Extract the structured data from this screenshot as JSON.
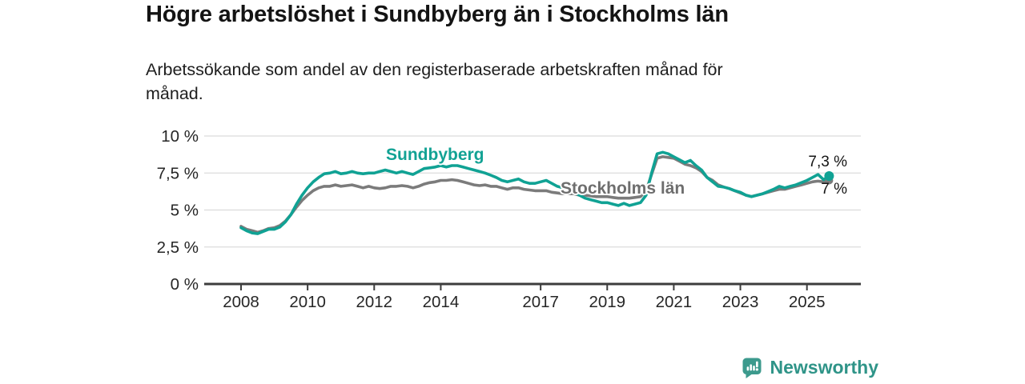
{
  "chart_data": {
    "type": "line",
    "title": "Högre arbetslöshet i Sundbyberg än i Stockholms län",
    "subtitle": "Arbetssökande som andel av den registerbaserade arbetskraften månad för\nmånad.",
    "xlabel": "",
    "ylabel": "",
    "ylim": [
      0,
      10
    ],
    "xlim": [
      2006.9,
      2026.6
    ],
    "grid": "horizontal",
    "legend_position": "inline-labels",
    "yticks": [
      {
        "value": 10,
        "label": "10 %"
      },
      {
        "value": 7.5,
        "label": "7,5 %"
      },
      {
        "value": 5,
        "label": "5 %"
      },
      {
        "value": 2.5,
        "label": "2,5 %"
      },
      {
        "value": 0,
        "label": "0 %"
      }
    ],
    "xticks": [
      {
        "value": 2008,
        "label": "2008"
      },
      {
        "value": 2010,
        "label": "2010"
      },
      {
        "value": 2012,
        "label": "2012"
      },
      {
        "value": 2014,
        "label": "2014"
      },
      {
        "value": 2017,
        "label": "2017"
      },
      {
        "value": 2019,
        "label": "2019"
      },
      {
        "value": 2021,
        "label": "2021"
      },
      {
        "value": 2023,
        "label": "2023"
      },
      {
        "value": 2025,
        "label": "2025"
      }
    ],
    "colors": {
      "sundbyberg": "#10A294",
      "stockholm": "#7B7B7B",
      "grid": "#DCDCDC",
      "axis": "#3D3D3D",
      "tick_text": "#262626"
    },
    "x_start": 2008,
    "x_step_years": 0.166667,
    "series": [
      {
        "name": "Sundbyberg",
        "color": "#10A294",
        "end_label": "7,3 %",
        "end_value": 7.3,
        "dot_radius": 6,
        "values": [
          3.8,
          3.6,
          3.45,
          3.4,
          3.55,
          3.7,
          3.7,
          3.85,
          4.2,
          4.7,
          5.4,
          6.0,
          6.5,
          6.9,
          7.2,
          7.45,
          7.5,
          7.6,
          7.45,
          7.5,
          7.6,
          7.5,
          7.45,
          7.5,
          7.5,
          7.6,
          7.7,
          7.6,
          7.5,
          7.6,
          7.5,
          7.4,
          7.6,
          7.8,
          7.85,
          7.9,
          8.0,
          7.9,
          8.0,
          8.0,
          7.9,
          7.8,
          7.7,
          7.6,
          7.5,
          7.35,
          7.2,
          7.0,
          6.9,
          7.0,
          7.1,
          6.9,
          6.8,
          6.8,
          6.9,
          7.0,
          6.8,
          6.6,
          6.5,
          6.4,
          6.2,
          6.0,
          5.8,
          5.7,
          5.6,
          5.5,
          5.5,
          5.4,
          5.3,
          5.45,
          5.3,
          5.4,
          5.5,
          6.0,
          7.5,
          8.8,
          8.9,
          8.8,
          8.6,
          8.4,
          8.2,
          8.35,
          8.0,
          7.7,
          7.2,
          6.9,
          6.6,
          6.55,
          6.45,
          6.3,
          6.2,
          6.0,
          5.9,
          6.0,
          6.1,
          6.25,
          6.4,
          6.6,
          6.5,
          6.6,
          6.7,
          6.85,
          7.0,
          7.2,
          7.4,
          7.05,
          7.3
        ]
      },
      {
        "name": "Stockholms län",
        "color": "#7B7B7B",
        "end_label": "7 %",
        "end_value": 7.0,
        "dot_radius": 5,
        "values": [
          3.9,
          3.7,
          3.6,
          3.5,
          3.6,
          3.75,
          3.8,
          3.95,
          4.25,
          4.7,
          5.2,
          5.65,
          6.0,
          6.3,
          6.5,
          6.6,
          6.6,
          6.7,
          6.6,
          6.65,
          6.7,
          6.6,
          6.5,
          6.6,
          6.5,
          6.45,
          6.5,
          6.6,
          6.6,
          6.65,
          6.6,
          6.5,
          6.6,
          6.75,
          6.85,
          6.9,
          7.0,
          7.0,
          7.05,
          7.0,
          6.9,
          6.8,
          6.7,
          6.65,
          6.7,
          6.6,
          6.6,
          6.5,
          6.4,
          6.5,
          6.5,
          6.4,
          6.35,
          6.3,
          6.3,
          6.3,
          6.2,
          6.15,
          6.1,
          6.1,
          6.1,
          6.0,
          6.0,
          5.95,
          5.9,
          5.9,
          5.9,
          5.85,
          5.8,
          5.8,
          5.8,
          5.85,
          5.9,
          6.3,
          7.4,
          8.5,
          8.6,
          8.55,
          8.5,
          8.3,
          8.1,
          8.0,
          7.85,
          7.6,
          7.2,
          7.0,
          6.7,
          6.55,
          6.45,
          6.3,
          6.15,
          6.0,
          5.9,
          6.0,
          6.1,
          6.2,
          6.3,
          6.4,
          6.4,
          6.5,
          6.6,
          6.7,
          6.8,
          6.9,
          6.95,
          6.9,
          7.0
        ]
      }
    ]
  },
  "footer": {
    "brand": "Newsworthy"
  }
}
